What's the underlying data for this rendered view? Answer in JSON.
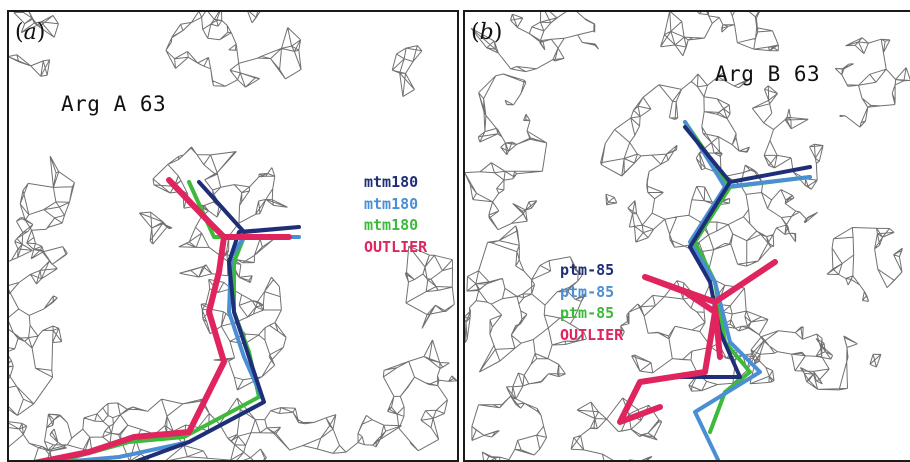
{
  "colors": {
    "mesh": "#707070",
    "dark_blue": "#1e2f78",
    "light_blue": "#4a8ed4",
    "green": "#3dba3a",
    "outlier": "#e0245e"
  },
  "panel_a": {
    "label_open": "(",
    "label_letter": "a",
    "label_close": ")",
    "residue": "Arg A 63",
    "legend": [
      {
        "text": "mtm180",
        "color": "#1e2f78"
      },
      {
        "text": "mtm180",
        "color": "#4a8ed4"
      },
      {
        "text": "mtm180",
        "color": "#3dba3a"
      },
      {
        "text": "OUTLIER",
        "color": "#e0245e"
      }
    ]
  },
  "panel_b": {
    "label_open": "(",
    "label_letter": "b",
    "label_close": ")",
    "residue": "Arg B 63",
    "legend": [
      {
        "text": "ptm-85",
        "color": "#1e2f78"
      },
      {
        "text": "ptm-85",
        "color": "#4a8ed4"
      },
      {
        "text": "ptm-85",
        "color": "#3dba3a"
      },
      {
        "text": "OUTLIER",
        "color": "#e0245e"
      }
    ]
  }
}
